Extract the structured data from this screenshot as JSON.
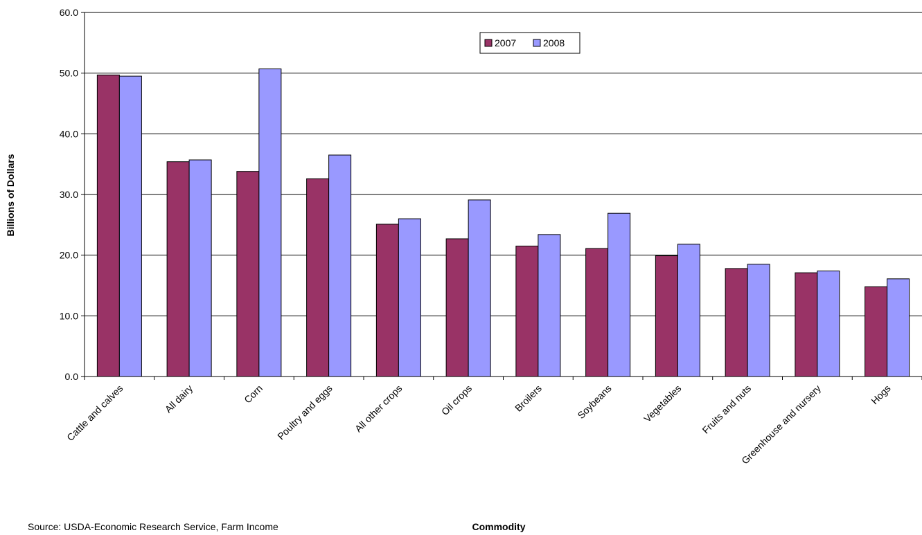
{
  "chart_data": {
    "type": "bar",
    "title": "",
    "xlabel": "Commodity",
    "ylabel": "Billions of Dollars",
    "ylim": [
      0,
      60
    ],
    "yticks": [
      "0.0",
      "10.0",
      "20.0",
      "30.0",
      "40.0",
      "50.0",
      "60.0"
    ],
    "grid": true,
    "legend": "top-center",
    "categories": [
      "Cattle and calves",
      "All dairy",
      "Corn",
      "Poultry and eggs",
      "All other crops",
      "Oil crops",
      "Broilers",
      "Soybeans",
      "Vegetables",
      "Fruits and nuts",
      "Greenhouse and nursery",
      "Hogs"
    ],
    "series": [
      {
        "name": "2007",
        "color": "#993366",
        "values": [
          49.7,
          35.4,
          33.8,
          32.6,
          25.1,
          22.7,
          21.5,
          21.1,
          19.9,
          17.8,
          17.1,
          14.8
        ]
      },
      {
        "name": "2008",
        "color": "#9999FF",
        "values": [
          49.5,
          35.7,
          50.7,
          36.5,
          26.0,
          29.1,
          23.4,
          26.9,
          21.8,
          18.5,
          17.4,
          16.1
        ]
      }
    ]
  },
  "source_note": "Source: USDA-Economic Research Service, Farm Income"
}
